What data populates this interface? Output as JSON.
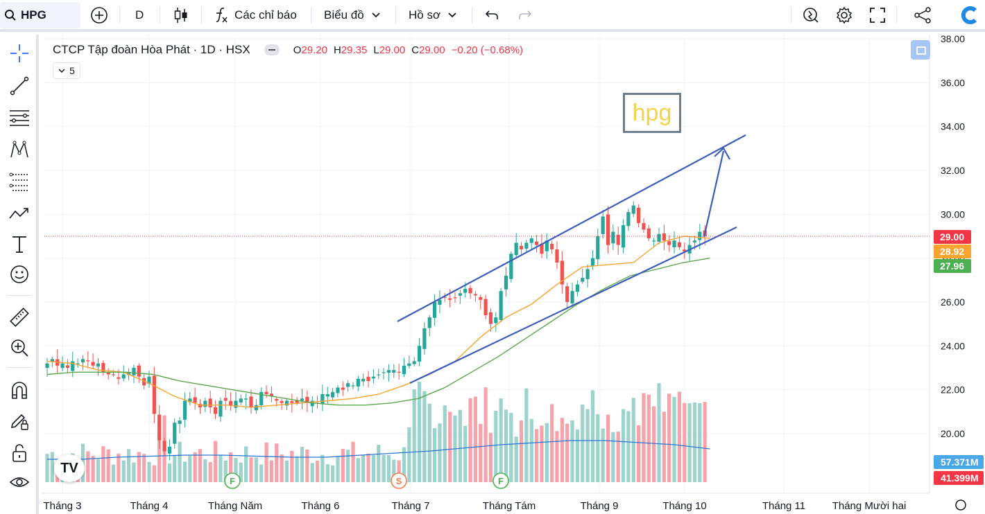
{
  "toolbar": {
    "symbol": "HPG",
    "interval": "D",
    "indicators_label": "Các chỉ báo",
    "chart_label": "Biểu đồ",
    "profile_label": "Hồ sơ",
    "icons": [
      "search-icon",
      "add-symbol-icon",
      "candles-icon",
      "fx-icon",
      "chevron-down-icon",
      "undo-icon",
      "redo-icon",
      "alert-icon",
      "gear-icon",
      "fullscreen-icon",
      "share-icon",
      "logo-icon"
    ]
  },
  "legend": {
    "title": "CTCP Tập đoàn Hòa Phát · 1D · HSX",
    "open_label": "O",
    "open": "29.20",
    "high_label": "H",
    "high": "29.35",
    "low_label": "L",
    "low": "29.00",
    "close_label": "C",
    "close": "29.00",
    "change": "−0.20 (−0.68%)",
    "collapse_count": "5"
  },
  "annotation": {
    "text": "hpg",
    "color": "#f5d24e"
  },
  "colors": {
    "up": "#26a69a",
    "down": "#ef5350",
    "ma_fast": "#f7a530",
    "ma_slow": "#5aa849",
    "trend": "#3b5dba",
    "vol_ma": "#2b76d6"
  },
  "chart_data": {
    "type": "candlestick",
    "price_axis": {
      "ticks": [
        "20.00",
        "22.00",
        "24.00",
        "26.00",
        "28.00",
        "30.00",
        "32.00",
        "34.00",
        "36.00",
        "38.00"
      ],
      "ylim": [
        18.5,
        38.0
      ]
    },
    "time_axis": {
      "labels": [
        "Tháng 3",
        "Tháng 4",
        "Tháng Năm",
        "Tháng 6",
        "Tháng 7",
        "Tháng Tám",
        "Tháng 9",
        "Tháng 10",
        "Tháng 11",
        "Tháng Mười hai"
      ]
    },
    "price_labels": [
      {
        "value": "29.00",
        "color": "#f23645"
      },
      {
        "value": "28.92",
        "color": "#f7a530"
      },
      {
        "value": "27.96",
        "color": "#4caf50"
      }
    ],
    "volume_labels": [
      {
        "value": "57.371M",
        "color": "#4aa8e8"
      },
      {
        "value": "41.399M",
        "color": "#f23645"
      }
    ],
    "series": [
      {
        "name": "close",
        "values": [
          23.2,
          23.4,
          23.1,
          23.2,
          23.0,
          23.3,
          23.2,
          23.4,
          23.3,
          23.1,
          23.2,
          22.8,
          22.7,
          22.7,
          22.5,
          22.7,
          22.8,
          23.0,
          22.6,
          22.2,
          22.6,
          20.9,
          19.7,
          19.2,
          19.4,
          20.5,
          20.6,
          21.5,
          21.6,
          21.4,
          21.2,
          21.5,
          21.2,
          20.9,
          21.5,
          21.5,
          21.3,
          21.5,
          21.6,
          21.6,
          21.2,
          21.3,
          21.9,
          21.8,
          21.7,
          21.5,
          21.4,
          21.5,
          21.4,
          21.4,
          21.6,
          21.4,
          21.5,
          21.4,
          21.8,
          21.8,
          21.9,
          22.1,
          22.0,
          22.3,
          22.2,
          22.5,
          22.5,
          22.4,
          22.6,
          22.7,
          22.8,
          22.9,
          22.9,
          22.8,
          23.1,
          23.2,
          23.3,
          24.0,
          24.8,
          25.3,
          26.0,
          26.1,
          26.2,
          26.1,
          26.2,
          26.4,
          26.6,
          26.4,
          26.3,
          26.1,
          25.4,
          25.0,
          25.3,
          26.5,
          27.2,
          28.2,
          28.7,
          28.4,
          28.7,
          28.9,
          28.6,
          28.2,
          28.8,
          28.4,
          27.8,
          26.8,
          26.0,
          26.5,
          26.8,
          27.1,
          27.5,
          28.0,
          29.0,
          29.9,
          28.6,
          29.2,
          28.6,
          29.5,
          30.1,
          30.4,
          29.6,
          29.3,
          28.9,
          28.8,
          29.1,
          28.8,
          28.6,
          28.8,
          28.5,
          28.3,
          28.6,
          28.8,
          29.2,
          29.0
        ]
      },
      {
        "name": "ma_fast",
        "values": [
          23.3,
          23.2,
          22.9,
          22.8,
          22.3,
          21.7,
          21.3,
          21.3,
          21.2,
          21.3,
          21.4,
          21.5,
          21.6,
          21.8,
          22.2,
          22.7,
          23.3,
          24.4,
          25.3,
          25.9,
          26.8,
          27.6,
          27.7,
          27.8,
          28.7,
          29.0,
          28.9
        ]
      },
      {
        "name": "ma_slow",
        "values": [
          22.7,
          22.8,
          22.8,
          22.8,
          22.7,
          22.4,
          22.2,
          22.0,
          21.8,
          21.6,
          21.4,
          21.3,
          21.3,
          21.4,
          21.6,
          22.1,
          22.8,
          23.5,
          24.3,
          25.1,
          25.9,
          26.6,
          27.2,
          27.5,
          27.8,
          28.0
        ]
      },
      {
        "name": "volume_ma",
        "values": [
          0.22,
          0.22,
          0.24,
          0.25,
          0.26,
          0.26,
          0.25,
          0.24,
          0.24,
          0.26,
          0.28,
          0.3,
          0.33,
          0.36,
          0.38,
          0.4,
          0.4,
          0.38,
          0.36,
          0.32
        ]
      }
    ],
    "trend_lines": [
      {
        "from": [
          "Tháng 7",
          25.2
        ],
        "to": [
          "Tháng 10",
          33.6
        ]
      },
      {
        "from": [
          "Tháng 7",
          22.3
        ],
        "to": [
          "Tháng 10",
          29.5
        ]
      }
    ],
    "events": [
      "F",
      "S",
      "F"
    ]
  }
}
